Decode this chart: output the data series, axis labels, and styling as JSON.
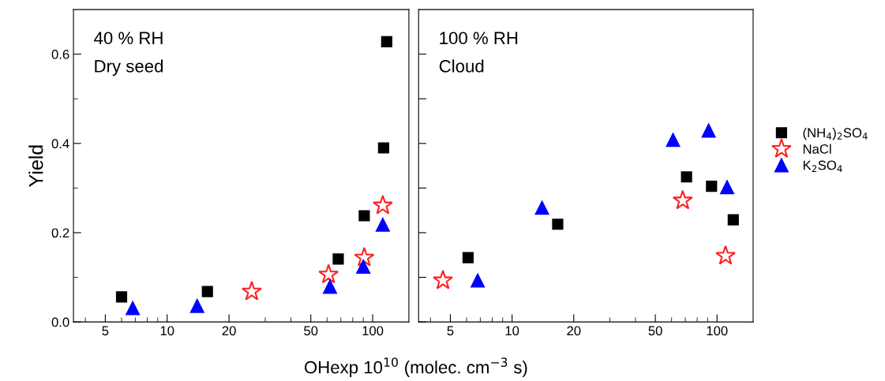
{
  "chart_data": [
    {
      "type": "scatter",
      "ylabel": "Yield",
      "xlabel": "OHexp 10$^{10}$ (molec. cm$^{−3}$ s)",
      "log": "x",
      "xlim": [
        3.5,
        150
      ],
      "ylim": [
        0,
        0.7
      ],
      "xticks": [
        {
          "value": 4,
          "label": null
        },
        5,
        {
          "value": 6,
          "label": null
        },
        {
          "value": 7,
          "label": null
        },
        {
          "value": 8,
          "label": null
        },
        {
          "value": 9,
          "label": null
        },
        10,
        20,
        {
          "value": 30,
          "label": null
        },
        {
          "value": 40,
          "label": null
        },
        50,
        {
          "value": 60,
          "label": null
        },
        {
          "value": 70,
          "label": null
        },
        {
          "value": 80,
          "label": null
        },
        {
          "value": 90,
          "label": null
        },
        100
      ],
      "yticks": [
        {
          "value": 0,
          "label": "0.0"
        },
        {
          "value": 0.1,
          "label": null
        },
        0.2,
        {
          "value": 0.3,
          "label": null
        },
        0.4,
        {
          "value": 0.5,
          "label": null
        },
        0.6
      ],
      "annotations": [
        "40 % RH",
        "Dry seed"
      ],
      "series": [
        {
          "color": "#000000",
          "marker": "square",
          "x": [
            6.0,
            15.7,
            68,
            91,
            113,
            117
          ],
          "values": [
            0.056,
            0.068,
            0.141,
            0.238,
            0.39,
            0.628
          ]
        },
        {
          "color": "#ff2020",
          "marker": "star",
          "x": [
            25.8,
            61,
            91,
            112
          ],
          "values": [
            0.068,
            0.106,
            0.144,
            0.261
          ]
        },
        {
          "color": "#0000ff",
          "marker": "triangle",
          "x": [
            6.8,
            14,
            62,
            90,
            112
          ],
          "values": [
            0.031,
            0.036,
            0.079,
            0.124,
            0.218
          ]
        }
      ]
    },
    {
      "type": "scatter",
      "log": "x",
      "xlim": [
        3.5,
        150
      ],
      "ylim": [
        0,
        0.7
      ],
      "tick_labels": "x",
      "legend": "right",
      "xticks": [
        {
          "value": 4,
          "label": null
        },
        5,
        {
          "value": 6,
          "label": null
        },
        {
          "value": 7,
          "label": null
        },
        {
          "value": 8,
          "label": null
        },
        {
          "value": 9,
          "label": null
        },
        10,
        20,
        {
          "value": 30,
          "label": null
        },
        {
          "value": 40,
          "label": null
        },
        50,
        {
          "value": 60,
          "label": null
        },
        {
          "value": 70,
          "label": null
        },
        {
          "value": 80,
          "label": null
        },
        {
          "value": 90,
          "label": null
        },
        100
      ],
      "yticks": [
        0,
        0.1,
        0.2,
        0.3,
        0.4,
        0.5,
        0.6
      ],
      "annotations": [
        "100 % RH",
        "Cloud"
      ],
      "series": [
        {
          "name": "(NH$_{4}$)$_{2}$SO$_{4}$",
          "color": "#000000",
          "marker": "square",
          "x": [
            6.1,
            16.7,
            71,
            94,
            120
          ],
          "values": [
            0.144,
            0.219,
            0.325,
            0.304,
            0.229
          ]
        },
        {
          "name": "NaCl",
          "color": "#ff2020",
          "marker": "star",
          "x": [
            4.6,
            68,
            110
          ],
          "values": [
            0.093,
            0.272,
            0.148
          ]
        },
        {
          "name": "K$_{2}$SO$_{4}$",
          "color": "#0000ff",
          "marker": "triangle",
          "x": [
            6.8,
            14,
            61,
            91,
            112
          ],
          "values": [
            0.093,
            0.256,
            0.408,
            0.429,
            0.302
          ]
        }
      ]
    }
  ]
}
